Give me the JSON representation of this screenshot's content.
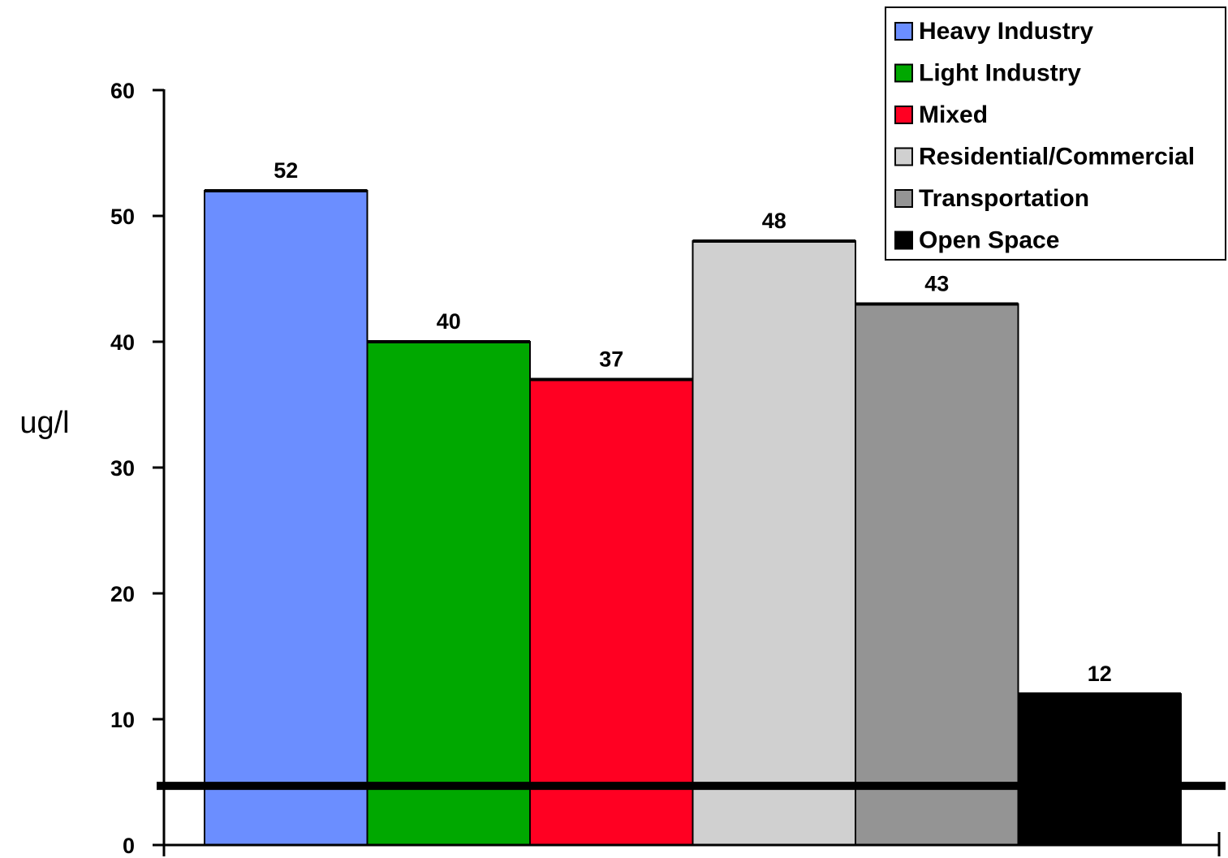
{
  "chart_data": {
    "type": "bar",
    "title": "",
    "xlabel": "",
    "ylabel": "ug/l",
    "ylim": [
      0,
      60
    ],
    "yticks": [
      0,
      10,
      20,
      30,
      40,
      50,
      60
    ],
    "grid": false,
    "legend_position": "top-right",
    "categories": [
      "Heavy Industry",
      "Light Industry",
      "Mixed",
      "Residential/Commercial",
      "Transportation",
      "Open Space"
    ],
    "values": [
      52,
      40,
      37,
      48,
      43,
      12
    ],
    "data_labels": [
      "52",
      "40",
      "37",
      "48",
      "43",
      "12"
    ],
    "colors": [
      "#6B8EFF",
      "#00A800",
      "#FF0022",
      "#D0D0D0",
      "#949494",
      "#000000"
    ],
    "reference_line": {
      "value": 4.7,
      "color": "#000000"
    }
  }
}
